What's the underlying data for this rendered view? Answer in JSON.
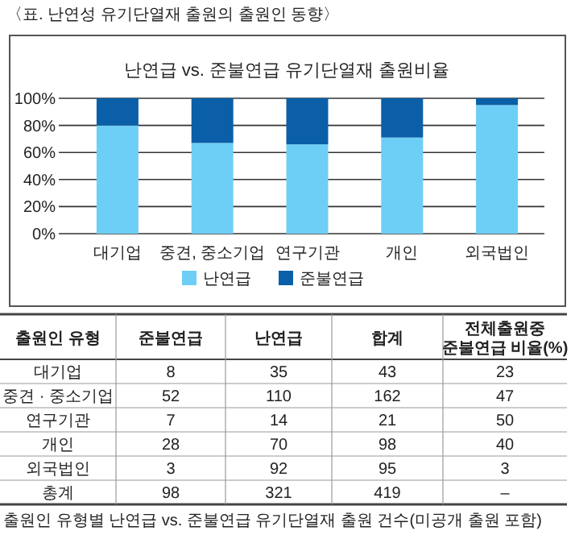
{
  "chart_data": [
    {
      "type": "bar",
      "stacked": true,
      "title": "난연급 vs. 준불연급 유기단열재 출원비율",
      "annotations": [
        "〈표. 난연성 유기단열재 출원의 출원인 동향〉"
      ],
      "categories": [
        "대기업",
        "중견, 중소기업",
        "연구기관",
        "개인",
        "외국법인"
      ],
      "series": [
        {
          "name": "난연급",
          "color": "#6ecff6",
          "values": [
            80,
            67,
            66,
            71,
            95
          ]
        },
        {
          "name": "준불연급",
          "color": "#0a5fa8",
          "values": [
            20,
            33,
            34,
            29,
            5
          ]
        }
      ],
      "ylim": [
        0,
        100
      ],
      "yticks": [
        {
          "value": 0,
          "label": "0%"
        },
        {
          "value": 20,
          "label": "20%"
        },
        {
          "value": 40,
          "label": "40%"
        },
        {
          "value": 60,
          "label": "60%"
        },
        {
          "value": 80,
          "label": "80%"
        },
        {
          "value": 100,
          "label": "100%"
        }
      ],
      "grid": "y",
      "legend": "bottom"
    },
    {
      "type": "other",
      "categories": [
        "출원인 유형",
        "준불연급",
        "난연급",
        "합계",
        "전체출원중 준불연급 비율(%)"
      ],
      "y_categories": [
        "대기업",
        "중견 · 중소기업",
        "연구기관",
        "개인",
        "외국법인",
        "총계"
      ],
      "cell_labels": [
        [
          "8",
          "35",
          "43",
          "23"
        ],
        [
          "52",
          "110",
          "162",
          "47"
        ],
        [
          "7",
          "14",
          "21",
          "50"
        ],
        [
          "28",
          "70",
          "98",
          "40"
        ],
        [
          "3",
          "92",
          "95",
          "3"
        ],
        [
          "98",
          "321",
          "419",
          "–"
        ]
      ],
      "annotations": [
        "출원인 유형별 난연급 vs. 준불연급 유기단열재 출원 건수(미공개 출원 포함)"
      ]
    }
  ]
}
